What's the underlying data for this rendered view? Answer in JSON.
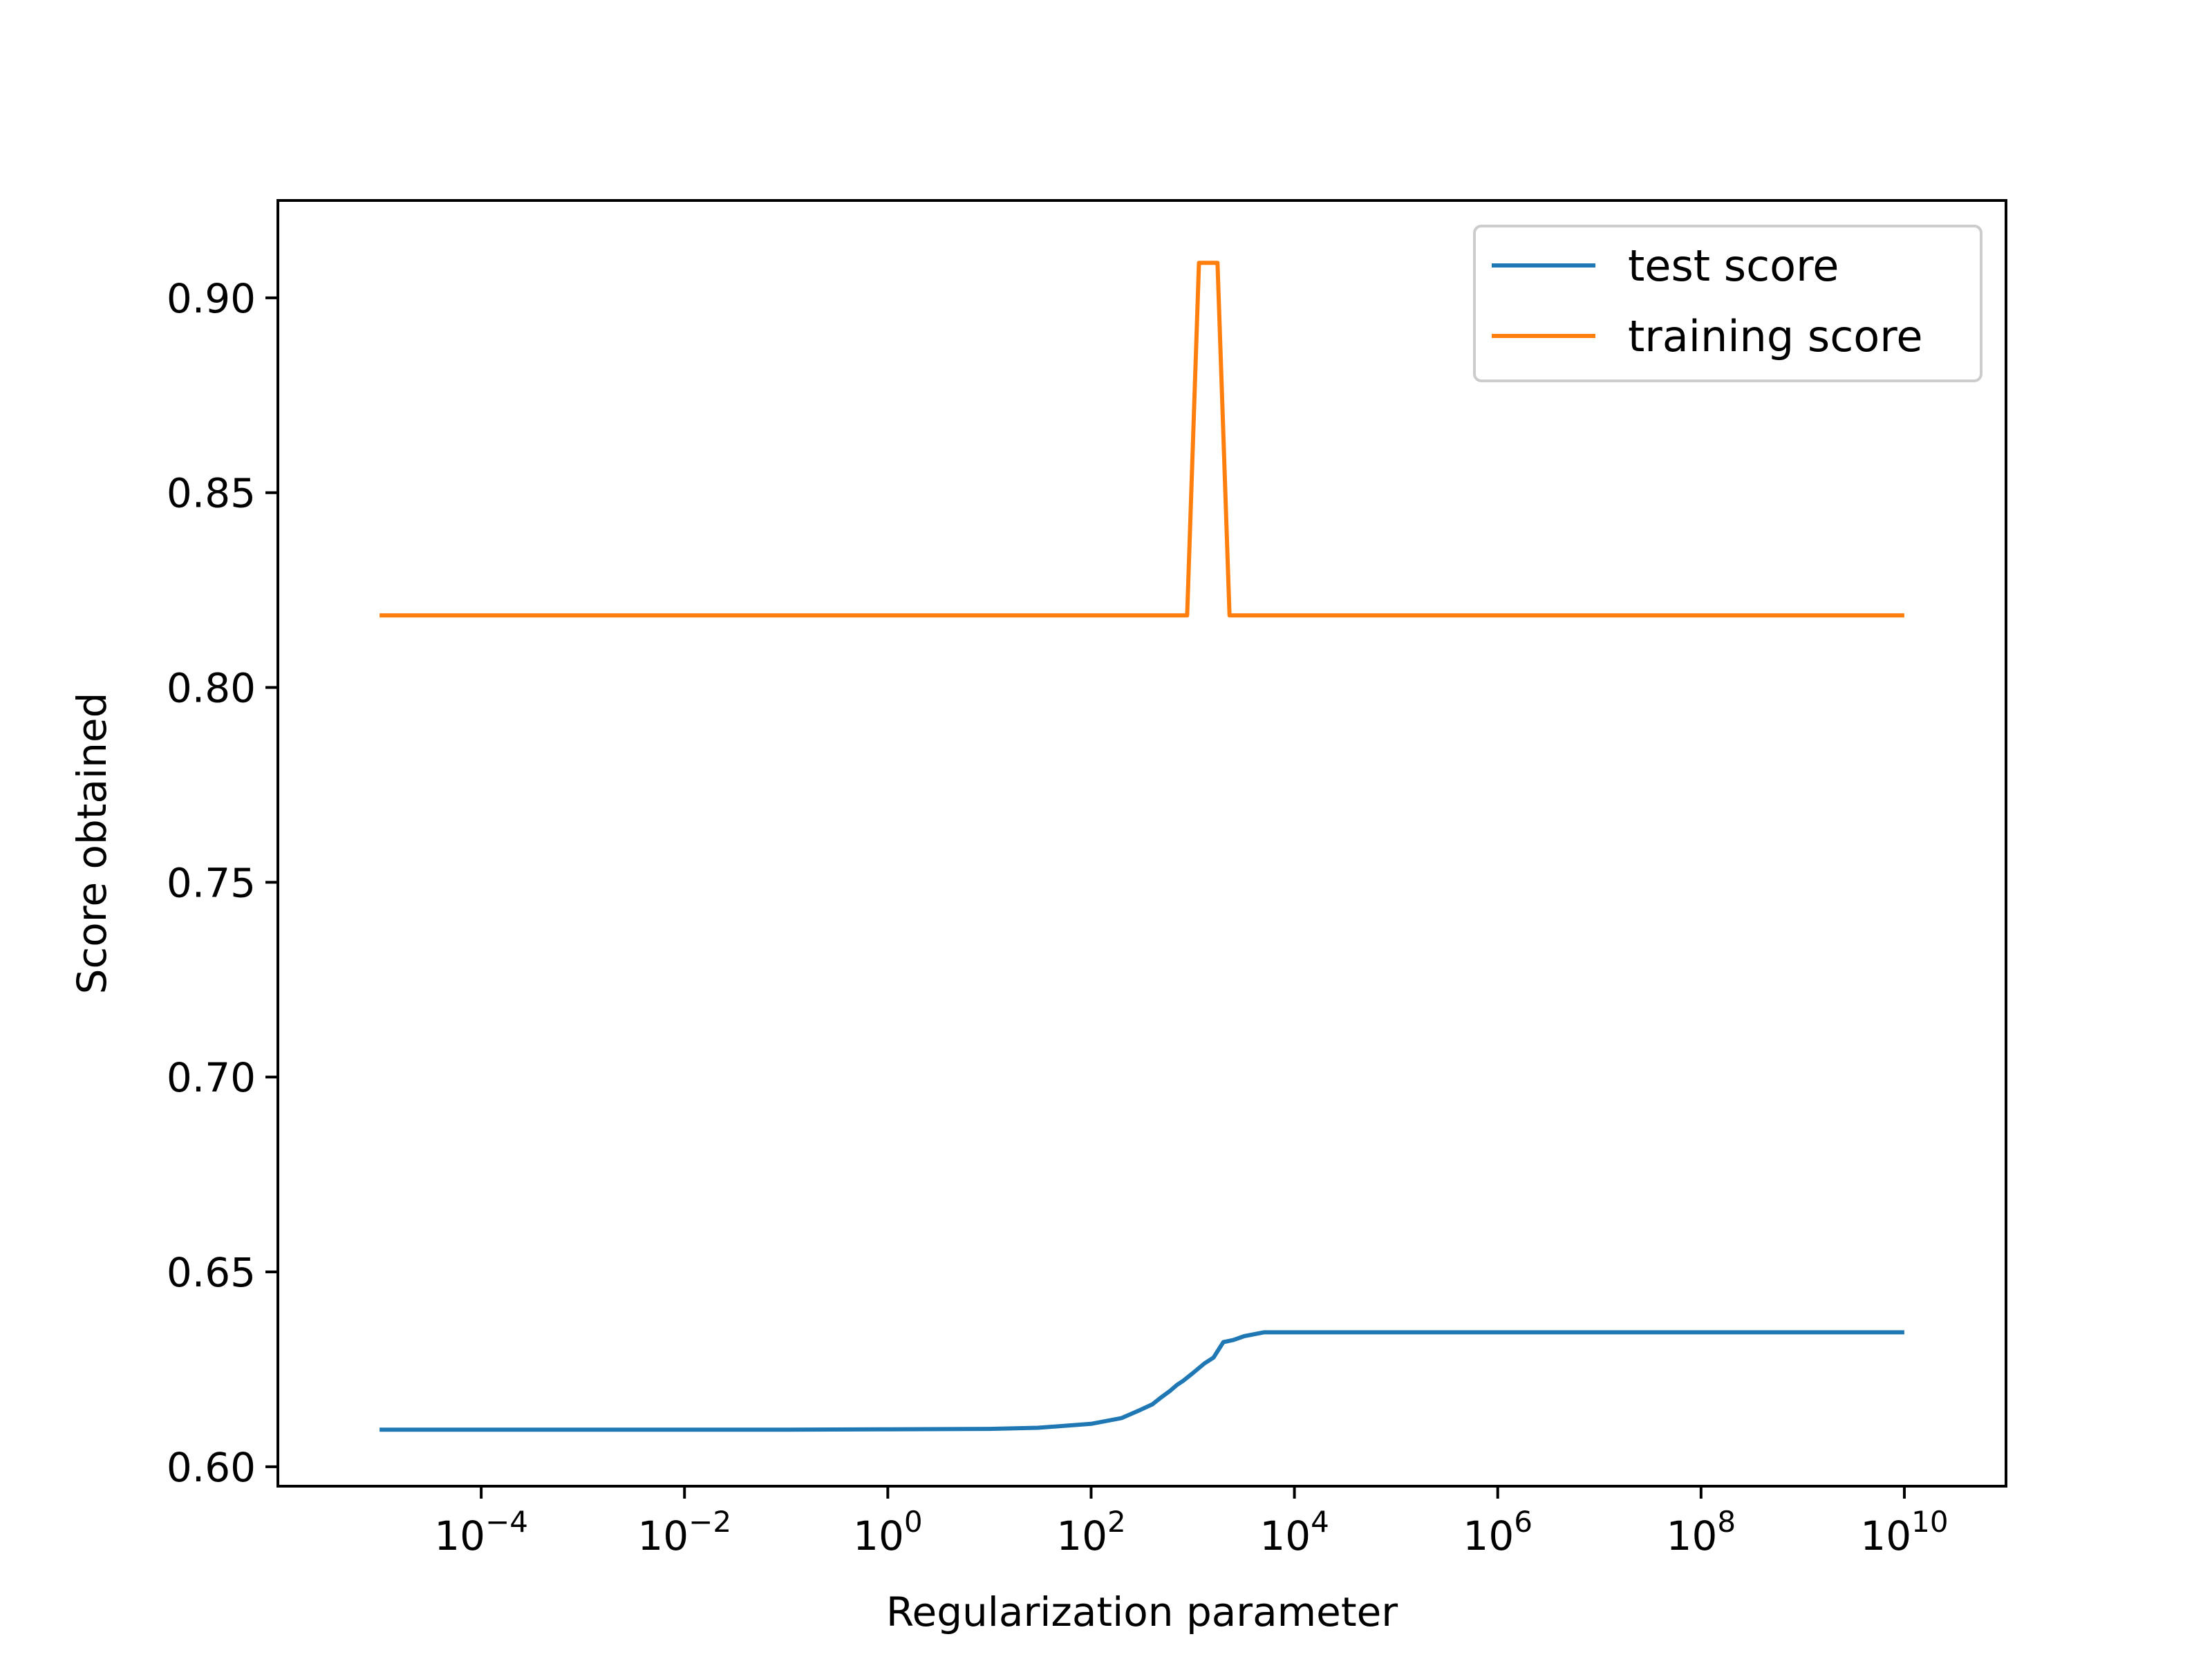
{
  "chart_data": {
    "type": "line",
    "title": "",
    "xlabel": "Regularization parameter",
    "ylabel": "Score obtained",
    "xscale": "log",
    "xlim": [
      1e-06,
      100000000000.0
    ],
    "ylim": [
      0.595,
      0.925
    ],
    "xticks": [
      {
        "value": 0.0001,
        "base": "10",
        "exp": "−4"
      },
      {
        "value": 0.01,
        "base": "10",
        "exp": "−2"
      },
      {
        "value": 1,
        "base": "10",
        "exp": "0"
      },
      {
        "value": 100,
        "base": "10",
        "exp": "2"
      },
      {
        "value": 10000,
        "base": "10",
        "exp": "4"
      },
      {
        "value": 1000000,
        "base": "10",
        "exp": "6"
      },
      {
        "value": 100000000,
        "base": "10",
        "exp": "8"
      },
      {
        "value": 10000000000,
        "base": "10",
        "exp": "10"
      }
    ],
    "yticks": [
      {
        "value": 0.6,
        "label": "0.60"
      },
      {
        "value": 0.65,
        "label": "0.65"
      },
      {
        "value": 0.7,
        "label": "0.70"
      },
      {
        "value": 0.75,
        "label": "0.75"
      },
      {
        "value": 0.8,
        "label": "0.80"
      },
      {
        "value": 0.85,
        "label": "0.85"
      },
      {
        "value": 0.9,
        "label": "0.90"
      }
    ],
    "grid": false,
    "legend": "top-right",
    "series": [
      {
        "name": "test score",
        "color": "#1f77b4",
        "x": [
          1e-05,
          0.001,
          0.1,
          1,
          10,
          30,
          100,
          200,
          300,
          400,
          500,
          600,
          700,
          800,
          1000,
          1300,
          1600,
          2000,
          2500,
          3200,
          5000,
          10000,
          100000,
          10000000000
        ],
        "y": [
          0.6095,
          0.6095,
          0.6095,
          0.6096,
          0.6097,
          0.61,
          0.611,
          0.6125,
          0.6145,
          0.616,
          0.618,
          0.6195,
          0.621,
          0.622,
          0.624,
          0.6265,
          0.628,
          0.632,
          0.6325,
          0.6335,
          0.6345,
          0.6345,
          0.6345,
          0.6345
        ]
      },
      {
        "name": "training score",
        "color": "#ff7f0e",
        "x": [
          1e-05,
          880,
          1150,
          1750,
          2300,
          10000000000
        ],
        "y": [
          0.8185,
          0.8185,
          0.909,
          0.909,
          0.8185,
          0.8185
        ]
      }
    ]
  }
}
